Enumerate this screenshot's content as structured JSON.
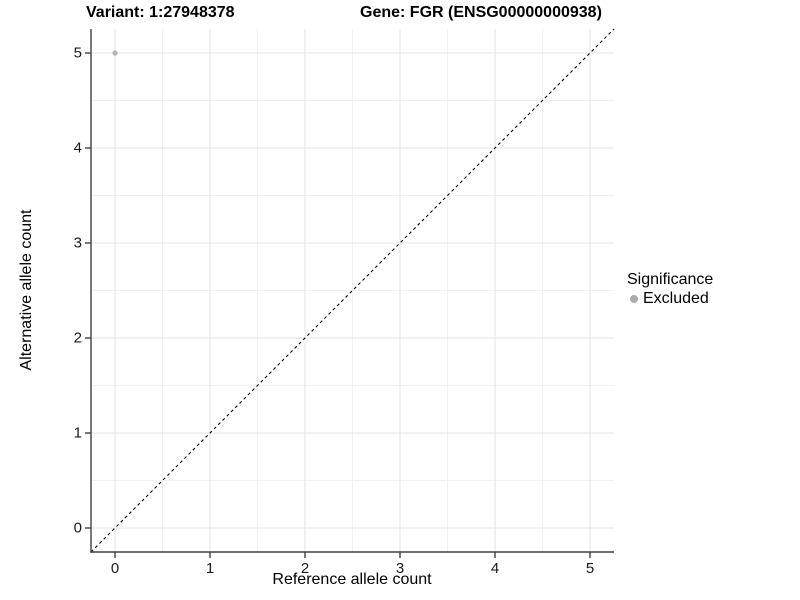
{
  "chart_data": {
    "type": "scatter",
    "title_variant": "Variant: 1:27948378",
    "title_gene": "Gene: FGR (ENSG00000000938)",
    "xlabel": "Reference allele count",
    "ylabel": "Alternative allele count",
    "x_ticks": [
      "0",
      "1",
      "2",
      "3",
      "4",
      "5"
    ],
    "y_ticks": [
      "0",
      "1",
      "2",
      "3",
      "4",
      "5"
    ],
    "x_tick_values": [
      0,
      1,
      2,
      3,
      4,
      5
    ],
    "y_tick_values": [
      0,
      1,
      2,
      3,
      4,
      5
    ],
    "xlim": [
      -0.25,
      5.25
    ],
    "ylim": [
      -0.25,
      5.25
    ],
    "grid": "major+minor",
    "minor_grid_values": [
      0.5,
      1.5,
      2.5,
      3.5,
      4.5
    ],
    "points": [
      {
        "x": 0,
        "y": 5,
        "series": "Excluded"
      }
    ],
    "reference_line": {
      "equation": "y = x",
      "style": "dashed",
      "color": "#000000"
    },
    "legend": {
      "title": "Significance",
      "position": "right",
      "items": [
        {
          "label": "Excluded",
          "color": "#ababab",
          "marker": "circle"
        }
      ]
    },
    "colors": {
      "point": "#b3b3b3",
      "grid_major": "#e3e3e3",
      "grid_minor": "#f1f1f1",
      "axis": "#404040",
      "background": "#ffffff",
      "text": "#000000"
    }
  }
}
